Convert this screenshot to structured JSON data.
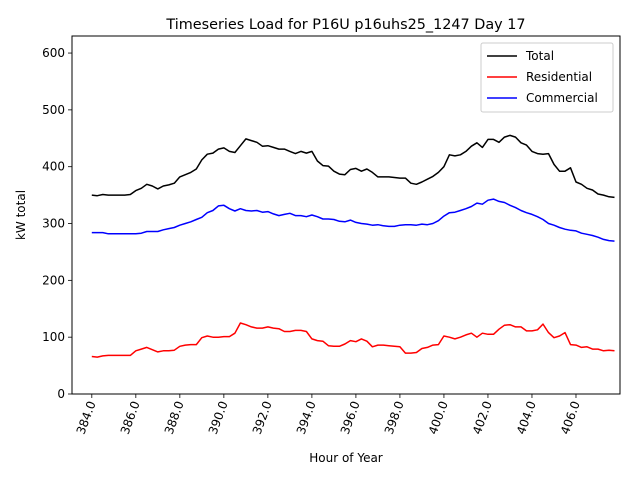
{
  "chart_data": {
    "type": "line",
    "title": "Timeseries Load for P16U p16uhs25_1247  Day 17",
    "xlabel": "Hour of Year",
    "ylabel": "kW total",
    "xlim": [
      383.1,
      408.0
    ],
    "ylim": [
      0,
      630
    ],
    "xticks": [
      384,
      386,
      388,
      390,
      392,
      394,
      396,
      398,
      400,
      402,
      404,
      406
    ],
    "xtick_labels": [
      "384.0",
      "386.0",
      "388.0",
      "390.0",
      "392.0",
      "394.0",
      "396.0",
      "398.0",
      "400.0",
      "402.0",
      "404.0",
      "406.0"
    ],
    "yticks": [
      0,
      100,
      200,
      300,
      400,
      500,
      600
    ],
    "ytick_labels": [
      "0",
      "100",
      "200",
      "300",
      "400",
      "500",
      "600"
    ],
    "grid": false,
    "legend_position": "top-right",
    "x": [
      384.0,
      384.25,
      384.5,
      384.75,
      385.0,
      385.25,
      385.5,
      385.75,
      386.0,
      386.25,
      386.5,
      386.75,
      387.0,
      387.25,
      387.5,
      387.75,
      388.0,
      388.25,
      388.5,
      388.75,
      389.0,
      389.25,
      389.5,
      389.75,
      390.0,
      390.25,
      390.5,
      390.75,
      391.0,
      391.25,
      391.5,
      391.75,
      392.0,
      392.25,
      392.5,
      392.75,
      393.0,
      393.25,
      393.5,
      393.75,
      394.0,
      394.25,
      394.5,
      394.75,
      395.0,
      395.25,
      395.5,
      395.75,
      396.0,
      396.25,
      396.5,
      396.75,
      397.0,
      397.25,
      397.5,
      397.75,
      398.0,
      398.25,
      398.5,
      398.75,
      399.0,
      399.25,
      399.5,
      399.75,
      400.0,
      400.25,
      400.5,
      400.75,
      401.0,
      401.25,
      401.5,
      401.75,
      402.0,
      402.25,
      402.5,
      402.75,
      403.0,
      403.25,
      403.5,
      403.75,
      404.0,
      404.25,
      404.5,
      404.75,
      405.0,
      405.25,
      405.5,
      405.75,
      406.0,
      406.25,
      406.5,
      406.75,
      407.0,
      407.25,
      407.5,
      407.75
    ],
    "series": [
      {
        "name": "Total",
        "color": "#000000",
        "values": [
          350,
          349,
          351,
          350,
          350,
          350,
          350,
          351,
          358,
          362,
          369,
          366,
          361,
          366,
          368,
          371,
          382,
          386,
          390,
          396,
          412,
          422,
          424,
          431,
          433,
          427,
          425,
          437,
          449,
          446,
          443,
          436,
          437,
          434,
          431,
          431,
          427,
          423,
          427,
          424,
          427,
          410,
          402,
          401,
          392,
          387,
          386,
          395,
          397,
          392,
          396,
          390,
          382,
          382,
          382,
          381,
          380,
          380,
          371,
          369,
          373,
          378,
          383,
          390,
          400,
          421,
          419,
          421,
          427,
          436,
          442,
          434,
          448,
          448,
          443,
          452,
          455,
          452,
          442,
          438,
          427,
          423,
          422,
          423,
          404,
          392,
          392,
          398,
          373,
          369,
          362,
          359,
          352,
          350,
          347,
          346
        ]
      },
      {
        "name": "Residential",
        "color": "#ff0000",
        "values": [
          66,
          65,
          67,
          68,
          68,
          68,
          68,
          68,
          76,
          79,
          82,
          78,
          74,
          76,
          76,
          77,
          84,
          86,
          87,
          87,
          99,
          102,
          100,
          100,
          101,
          101,
          107,
          125,
          122,
          118,
          116,
          116,
          118,
          116,
          115,
          110,
          110,
          112,
          112,
          110,
          97,
          94,
          93,
          85,
          84,
          84,
          88,
          94,
          92,
          97,
          93,
          83,
          86,
          86,
          85,
          84,
          83,
          72,
          72,
          73,
          80,
          82,
          86,
          87,
          102,
          100,
          97,
          100,
          104,
          107,
          100,
          107,
          105,
          105,
          114,
          121,
          122,
          118,
          118,
          111,
          111,
          113,
          123,
          108,
          99,
          102,
          108,
          87,
          86,
          82,
          83,
          79,
          79,
          76,
          77,
          76
        ]
      },
      {
        "name": "Commercial",
        "color": "#0000ff",
        "values": [
          284,
          284,
          284,
          282,
          282,
          282,
          282,
          282,
          282,
          283,
          286,
          286,
          286,
          289,
          291,
          293,
          297,
          300,
          303,
          307,
          311,
          319,
          323,
          331,
          332,
          326,
          322,
          326,
          323,
          322,
          323,
          320,
          321,
          317,
          314,
          316,
          318,
          314,
          314,
          312,
          315,
          312,
          308,
          308,
          307,
          304,
          303,
          306,
          302,
          300,
          299,
          297,
          298,
          296,
          295,
          295,
          297,
          298,
          298,
          297,
          299,
          298,
          300,
          305,
          313,
          319,
          320,
          323,
          326,
          330,
          336,
          334,
          341,
          343,
          339,
          337,
          332,
          328,
          323,
          319,
          316,
          312,
          307,
          300,
          297,
          293,
          290,
          288,
          287,
          283,
          281,
          279,
          276,
          272,
          270,
          269
        ]
      }
    ]
  }
}
